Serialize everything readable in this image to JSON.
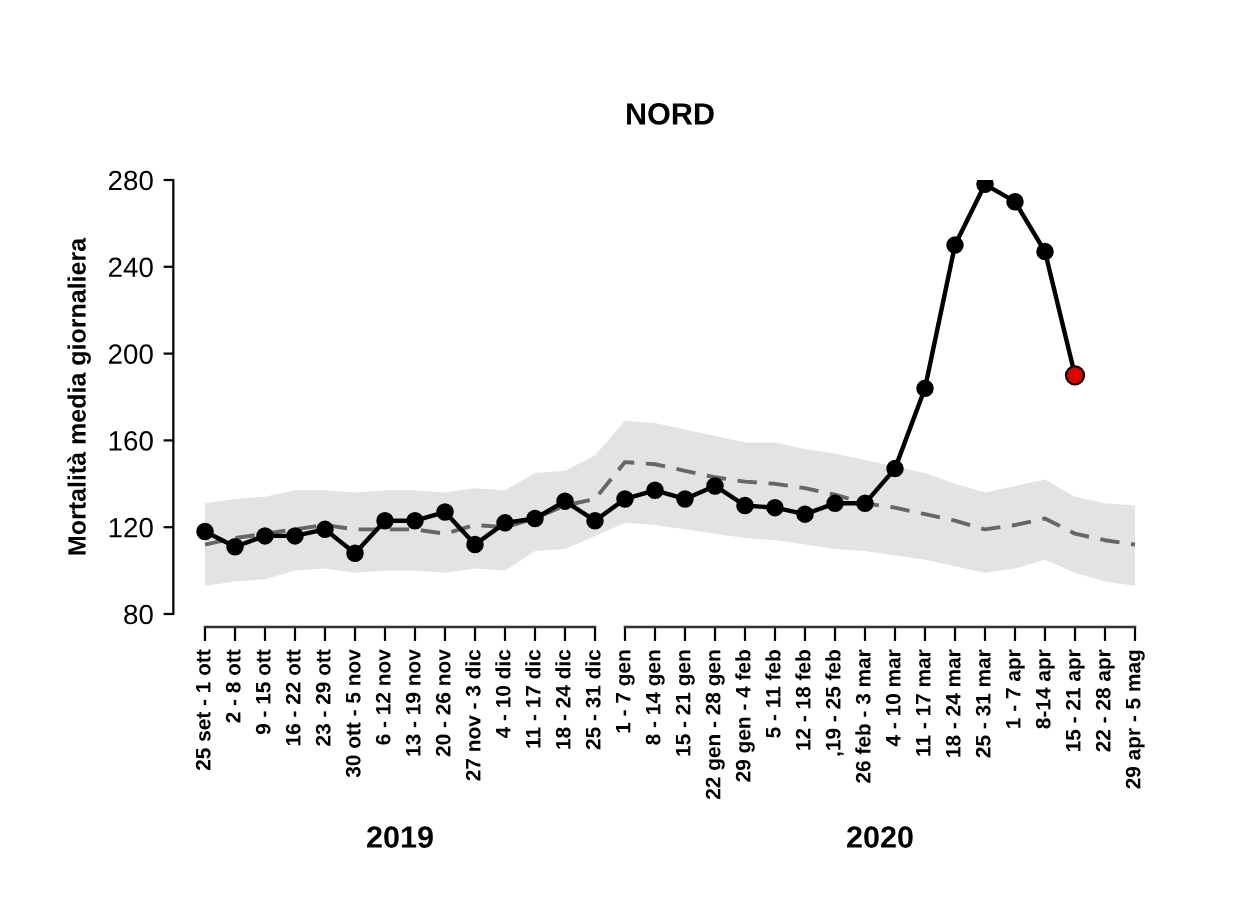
{
  "chart_data": {
    "type": "line",
    "title": "NORD",
    "ylabel": "Mortalità media giornaliera",
    "categories": [
      "25 set - 1 ott",
      "2 - 8 ott",
      "9 - 15 ott",
      "16 - 22 ott",
      "23 - 29 ott",
      "30 ott - 5 nov",
      "6 - 12 nov",
      "13 - 19 nov",
      "20 - 26 nov",
      "27 nov - 3 dic",
      "4 - 10 dic",
      "11 - 17 dic",
      "18 - 24 dic",
      "25 - 31 dic",
      "1 - 7 gen",
      "8 - 14 gen",
      "15 - 21 gen",
      "22 gen - 28 gen",
      "29 gen - 4 feb",
      "5 - 11 feb",
      "12 - 18 feb",
      ",19 - 25 feb",
      "26 feb - 3 mar",
      "4 - 10 mar",
      "11 - 17 mar",
      "18 - 24 mar",
      "25 - 31 mar",
      "1 - 7 apr",
      "8-14 apr",
      "15 - 21 apr",
      "22 - 28 apr",
      "29 apr - 5 mag"
    ],
    "series": [
      {
        "color": "#666666",
        "line_style": "dashed",
        "marker": "none",
        "values": [
          112,
          115,
          117,
          119,
          121,
          119,
          119,
          119,
          117,
          121,
          120,
          124,
          130,
          133,
          150,
          149,
          146,
          143,
          141,
          140,
          138,
          135,
          131,
          129,
          126,
          123,
          119,
          121,
          124,
          117,
          114,
          112
        ],
        "lower": [
          93,
          95,
          96,
          100,
          101,
          99,
          100,
          100,
          99,
          101,
          100,
          109,
          110,
          116,
          122,
          121,
          119,
          117,
          115,
          114,
          112,
          110,
          109,
          107,
          105,
          102,
          99,
          101,
          105,
          99,
          95,
          93
        ],
        "upper": [
          131,
          133,
          134,
          137,
          137,
          136,
          137,
          137,
          136,
          138,
          137,
          145,
          146,
          153,
          169,
          168,
          165,
          162,
          159,
          159,
          156,
          154,
          151,
          148,
          145,
          140,
          136,
          139,
          142,
          134,
          131,
          130
        ]
      },
      {
        "color": "#000000",
        "line_style": "solid",
        "marker": "circle",
        "values": [
          118,
          111,
          116,
          116,
          119,
          108,
          123,
          123,
          127,
          112,
          122,
          124,
          132,
          123,
          133,
          137,
          133,
          139,
          130,
          129,
          126,
          131,
          131,
          147,
          184,
          250,
          278,
          270,
          247,
          190,
          null,
          null
        ],
        "colors": [
          "#000000",
          "#000000",
          "#000000",
          "#000000",
          "#000000",
          "#000000",
          "#000000",
          "#000000",
          "#000000",
          "#000000",
          "#000000",
          "#000000",
          "#000000",
          "#000000",
          "#000000",
          "#000000",
          "#000000",
          "#000000",
          "#000000",
          "#000000",
          "#000000",
          "#000000",
          "#000000",
          "#000000",
          "#000000",
          "#000000",
          "#000000",
          "#000000",
          "#000000",
          "#e00000",
          null,
          null
        ]
      }
    ],
    "ylim": [
      80,
      280
    ],
    "yticks": [
      80,
      120,
      160,
      200,
      240,
      280
    ],
    "annotations": [
      "2019",
      "2020"
    ],
    "grid": false,
    "legend": false
  }
}
